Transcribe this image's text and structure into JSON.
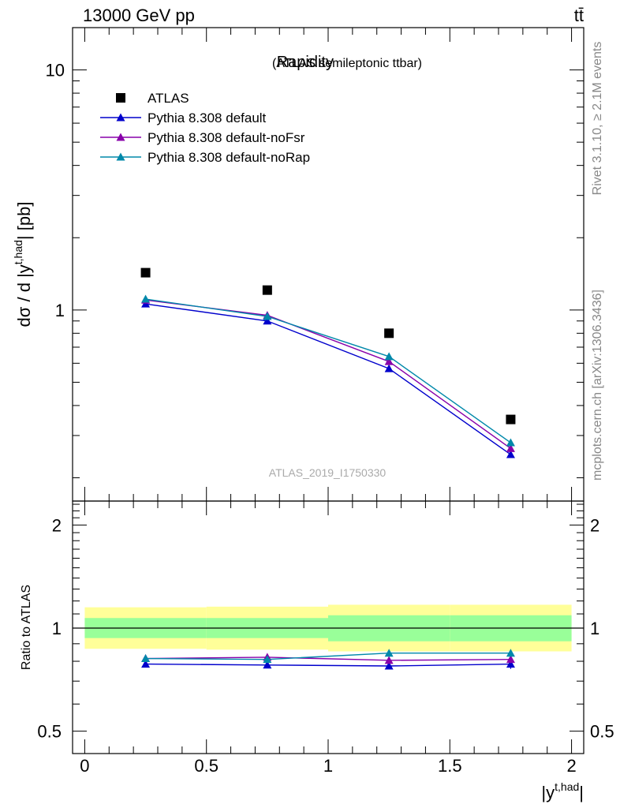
{
  "header": {
    "left": "13000 GeV pp",
    "right": "tt̄"
  },
  "side_text": {
    "rivet": "Rivet 3.1.10, ≥ 2.1M events",
    "source": "mcplots.cern.ch [arXiv:1306.3436]"
  },
  "chart_data": [
    {
      "type": "scatter",
      "title": "Rapidity",
      "subtitle": "(ATLAS semileptonic ttbar)",
      "ylabel": "dσ / d |y",
      "ylabel_sup": "t,had",
      "ylabel_unit": "| [pb]",
      "yscale": "log",
      "ylim": [
        0.16,
        15
      ],
      "xlim": [
        -0.05,
        2.05
      ],
      "y_tick_labels": [
        "1",
        "10"
      ],
      "watermark": "ATLAS_2019_I1750330",
      "legend_placement": "top-left",
      "x": [
        0.25,
        0.75,
        1.25,
        1.75
      ],
      "series": [
        {
          "name": "ATLAS",
          "values": [
            1.43,
            1.21,
            0.8,
            0.35
          ],
          "color": "#000000",
          "marker": "square"
        },
        {
          "name": "Pythia 8.308 default",
          "values": [
            1.06,
            0.9,
            0.57,
            0.25
          ],
          "color": "#0000cc",
          "marker": "triangle"
        },
        {
          "name": "Pythia 8.308 default-noFsr",
          "values": [
            1.1,
            0.95,
            0.61,
            0.265
          ],
          "color": "#8800aa",
          "marker": "triangle"
        },
        {
          "name": "Pythia 8.308 default-noRap",
          "values": [
            1.11,
            0.94,
            0.64,
            0.28
          ],
          "color": "#0088aa",
          "marker": "triangle"
        }
      ]
    },
    {
      "type": "scatter",
      "ylabel": "Ratio to ATLAS",
      "xlabel": "|y",
      "xlabel_sup": "t,had",
      "xlabel_end": "|",
      "yscale": "log",
      "ylim": [
        0.43,
        2.35
      ],
      "xlim": [
        -0.05,
        2.05
      ],
      "y_tick_labels": [
        "0.5",
        "1",
        "2"
      ],
      "x_tick_labels": [
        "0",
        "0.5",
        "1",
        "1.5",
        "2"
      ],
      "bins": [
        [
          0,
          0.5
        ],
        [
          0.5,
          1.0
        ],
        [
          1.0,
          1.5
        ],
        [
          1.5,
          2.0
        ]
      ],
      "band_inner": [
        [
          0.935,
          1.07
        ],
        [
          0.935,
          1.07
        ],
        [
          0.915,
          1.09
        ],
        [
          0.915,
          1.09
        ]
      ],
      "band_outer": [
        [
          0.87,
          1.15
        ],
        [
          0.865,
          1.155
        ],
        [
          0.855,
          1.17
        ],
        [
          0.855,
          1.17
        ]
      ],
      "x": [
        0.25,
        0.75,
        1.25,
        1.75
      ],
      "series": [
        {
          "name": "Pythia 8.308 default",
          "values": [
            0.785,
            0.78,
            0.775,
            0.785
          ],
          "errors": [
            0.008,
            0.008,
            0.01,
            0.025
          ],
          "color": "#0000cc"
        },
        {
          "name": "Pythia 8.308 default-noFsr",
          "values": [
            0.815,
            0.822,
            0.805,
            0.81
          ],
          "errors": [
            0.008,
            0.008,
            0.01,
            0.02
          ],
          "color": "#8800aa"
        },
        {
          "name": "Pythia 8.308 default-noRap",
          "values": [
            0.815,
            0.81,
            0.845,
            0.845
          ],
          "errors": [
            0.008,
            0.008,
            0.01,
            0.02
          ],
          "color": "#0088aa"
        }
      ]
    }
  ],
  "colors": {
    "band_inner": "#99ff99",
    "band_outer": "#ffff99",
    "watermark": "#aaaaaa"
  }
}
